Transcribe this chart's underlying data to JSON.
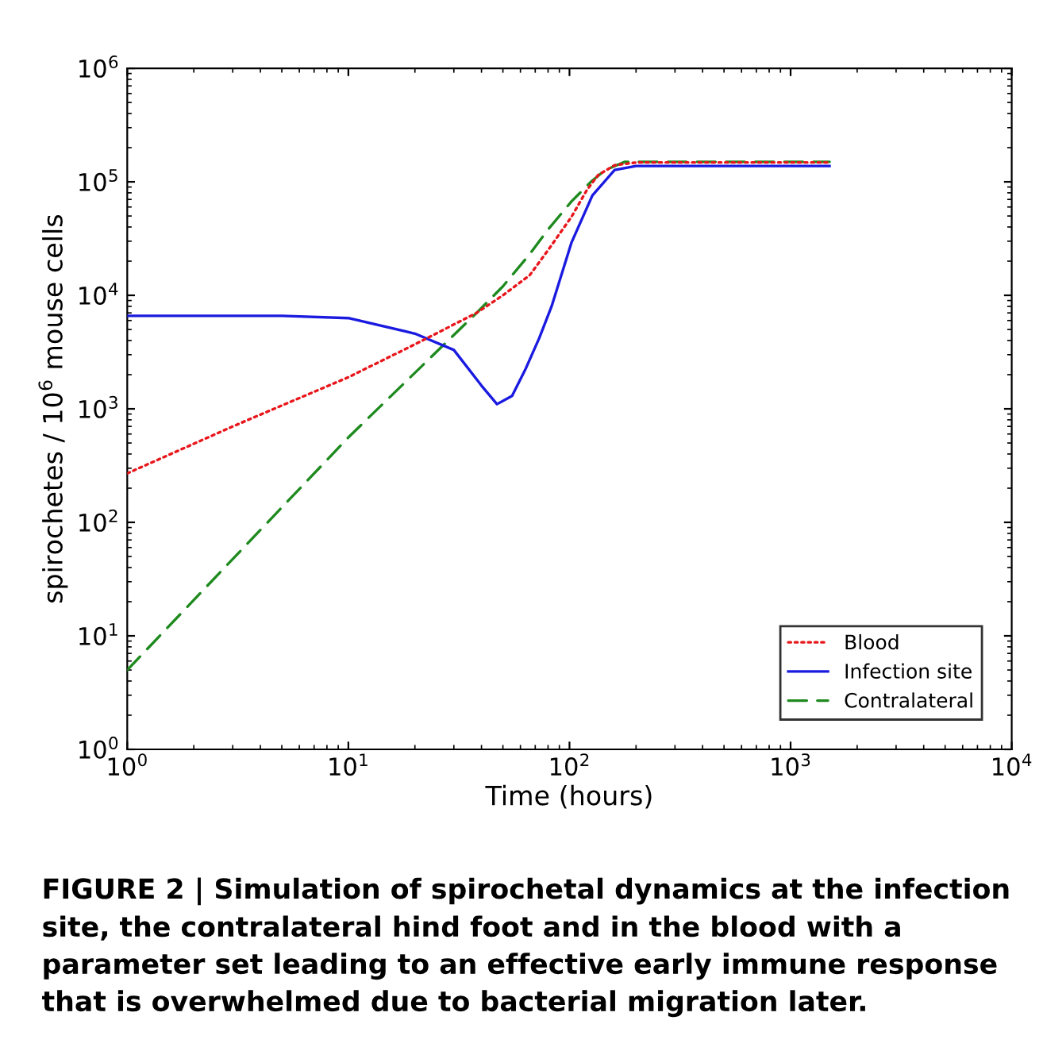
{
  "chart_data": {
    "type": "line",
    "log": "xy",
    "xlabel": "Time (hours)",
    "ylabel": "spirochetes / 10$^{6}$ mouse cells",
    "xlim": [
      1,
      10000
    ],
    "ylim": [
      1,
      1000000
    ],
    "xticks": [
      {
        "value": 1,
        "label": "10$^{0}$"
      },
      {
        "value": 10,
        "label": "10$^{1}$"
      },
      {
        "value": 100,
        "label": "10$^{2}$"
      },
      {
        "value": 1000,
        "label": "10$^{3}$"
      },
      {
        "value": 10000,
        "label": "10$^{4}$"
      }
    ],
    "yticks": [
      {
        "value": 1,
        "label": "10$^{0}$"
      },
      {
        "value": 10,
        "label": "10$^{1}$"
      },
      {
        "value": 100,
        "label": "10$^{2}$"
      },
      {
        "value": 1000,
        "label": "10$^{3}$"
      },
      {
        "value": 10000,
        "label": "10$^{4}$"
      },
      {
        "value": 100000,
        "label": "10$^{5}$"
      },
      {
        "value": 1000000,
        "label": "10$^{6}$"
      }
    ],
    "grid": false,
    "legend": "bottom right",
    "series": [
      {
        "name": "Blood",
        "color": "#e8161b",
        "line_style": "dotted",
        "x": [
          1,
          3,
          10,
          20,
          38,
          50,
          66,
          80,
          102,
          120,
          135,
          160,
          200,
          300,
          1500
        ],
        "values": [
          270,
          700,
          1900,
          3700,
          7000,
          10000,
          15000,
          25000,
          49000,
          85000,
          115000,
          140000,
          148000,
          148000,
          148000
        ]
      },
      {
        "name": "Infection site",
        "color": "#1a1ae0",
        "line_style": "solid",
        "x": [
          1,
          5,
          10,
          20,
          30,
          40,
          47,
          55,
          63,
          73,
          83,
          102,
          127,
          160,
          200,
          300,
          1500
        ],
        "values": [
          6600,
          6600,
          6300,
          4600,
          3300,
          1600,
          1100,
          1300,
          2200,
          4200,
          8000,
          29000,
          76000,
          127000,
          138000,
          138000,
          138000
        ]
      },
      {
        "name": "Contralateral",
        "color": "#1e8a1e",
        "line_style": "dashed",
        "x": [
          1,
          10,
          38,
          50,
          66,
          80,
          102,
          125,
          145,
          178,
          250,
          1500
        ],
        "values": [
          5,
          560,
          7000,
          12000,
          23000,
          38000,
          67000,
          100000,
          127000,
          150000,
          150000,
          150000
        ]
      }
    ],
    "annotations": [
      "FIGURE 2 | Simulation of spirochetal dynamics at the infection site, the contralateral hind foot and in the blood with a parameter set leading to an effective early immune response that is overwhelmed due to bacterial migration later."
    ]
  }
}
